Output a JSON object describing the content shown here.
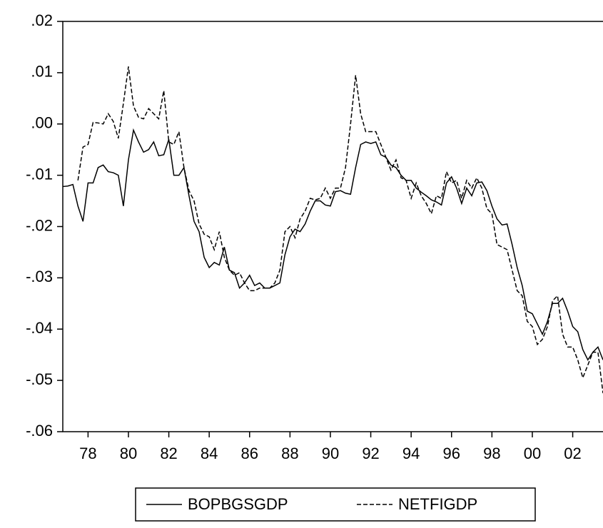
{
  "chart_data": {
    "type": "line",
    "x": [
      1976.75,
      1977,
      1977.25,
      1977.5,
      1977.75,
      1978,
      1978.25,
      1978.5,
      1978.75,
      1979,
      1979.25,
      1979.5,
      1979.75,
      1980,
      1980.25,
      1980.5,
      1980.75,
      1981,
      1981.25,
      1981.5,
      1981.75,
      1982,
      1982.25,
      1982.5,
      1982.75,
      1983,
      1983.25,
      1983.5,
      1983.75,
      1984,
      1984.25,
      1984.5,
      1984.75,
      1985,
      1985.25,
      1985.5,
      1985.75,
      1986,
      1986.25,
      1986.5,
      1986.75,
      1987,
      1987.25,
      1987.5,
      1987.75,
      1988,
      1988.25,
      1988.5,
      1988.75,
      1989,
      1989.25,
      1989.5,
      1989.75,
      1990,
      1990.25,
      1990.5,
      1990.75,
      1991,
      1991.25,
      1991.5,
      1991.75,
      1992,
      1992.25,
      1992.5,
      1992.75,
      1993,
      1993.25,
      1993.5,
      1993.75,
      1994,
      1994.25,
      1994.5,
      1994.75,
      1995,
      1995.25,
      1995.5,
      1995.75,
      1996,
      1996.25,
      1996.5,
      1996.75,
      1997,
      1997.25,
      1997.5,
      1997.75,
      1998,
      1998.25,
      1998.5,
      1998.75,
      1999,
      1999.25,
      1999.5,
      1999.75,
      2000,
      2000.25,
      2000.5,
      2000.75,
      2001,
      2001.25,
      2001.5,
      2001.75,
      2002,
      2002.25,
      2002.5,
      2002.75,
      2003,
      2003.25,
      2003.5
    ],
    "series": [
      {
        "name": "BOPBGSGDP",
        "color": "#000000",
        "dash": "solid",
        "values": [
          -0.0122,
          -0.0121,
          -0.0118,
          -0.016,
          -0.019,
          -0.0115,
          -0.0115,
          -0.0085,
          -0.008,
          -0.0093,
          -0.0095,
          -0.01,
          -0.016,
          -0.007,
          -0.0012,
          -0.0035,
          -0.0055,
          -0.005,
          -0.0035,
          -0.0062,
          -0.006,
          -0.003,
          -0.01,
          -0.01,
          -0.0085,
          -0.014,
          -0.019,
          -0.021,
          -0.026,
          -0.028,
          -0.027,
          -0.0275,
          -0.024,
          -0.0285,
          -0.029,
          -0.032,
          -0.031,
          -0.0295,
          -0.0315,
          -0.031,
          -0.032,
          -0.032,
          -0.0315,
          -0.031,
          -0.0255,
          -0.022,
          -0.0205,
          -0.021,
          -0.0195,
          -0.017,
          -0.015,
          -0.015,
          -0.0158,
          -0.016,
          -0.0132,
          -0.013,
          -0.0135,
          -0.0137,
          -0.0085,
          -0.004,
          -0.0035,
          -0.0038,
          -0.0035,
          -0.006,
          -0.0065,
          -0.008,
          -0.0085,
          -0.01,
          -0.011,
          -0.011,
          -0.0125,
          -0.0133,
          -0.014,
          -0.0148,
          -0.0152,
          -0.0158,
          -0.0115,
          -0.0103,
          -0.0125,
          -0.0155,
          -0.0125,
          -0.014,
          -0.0115,
          -0.0113,
          -0.013,
          -0.016,
          -0.0185,
          -0.0197,
          -0.0195,
          -0.0235,
          -0.028,
          -0.0315,
          -0.0365,
          -0.037,
          -0.039,
          -0.041,
          -0.0385,
          -0.035,
          -0.035,
          -0.034,
          -0.0365,
          -0.0395,
          -0.0405,
          -0.044,
          -0.046,
          -0.0445,
          -0.0435,
          -0.046
        ]
      },
      {
        "name": "NETFIGDP",
        "color": "#000000",
        "dash": "dashed",
        "values": [
          null,
          null,
          null,
          -0.011,
          -0.0045,
          -0.004,
          0.0003,
          0.0002,
          0.0,
          0.002,
          0.0005,
          -0.0028,
          0.004,
          0.0112,
          0.0035,
          0.0013,
          0.001,
          0.003,
          0.002,
          0.001,
          0.0065,
          -0.0035,
          -0.004,
          -0.0015,
          -0.0085,
          -0.013,
          -0.015,
          -0.0195,
          -0.0215,
          -0.022,
          -0.0245,
          -0.021,
          -0.026,
          -0.0285,
          -0.0295,
          -0.029,
          -0.031,
          -0.0325,
          -0.0325,
          -0.032,
          -0.032,
          -0.032,
          -0.031,
          -0.0285,
          -0.021,
          -0.02,
          -0.0222,
          -0.0185,
          -0.017,
          -0.0145,
          -0.0148,
          -0.0145,
          -0.0125,
          -0.0145,
          -0.0125,
          -0.0125,
          -0.0085,
          0.0,
          0.0095,
          0.002,
          -0.0015,
          -0.0015,
          -0.0015,
          -0.004,
          -0.0065,
          -0.009,
          -0.007,
          -0.0105,
          -0.011,
          -0.0145,
          -0.0115,
          -0.014,
          -0.0155,
          -0.0175,
          -0.014,
          -0.0145,
          -0.0093,
          -0.0115,
          -0.011,
          -0.0145,
          -0.011,
          -0.0125,
          -0.0105,
          -0.0125,
          -0.0165,
          -0.0175,
          -0.0235,
          -0.024,
          -0.0245,
          -0.0285,
          -0.0325,
          -0.0335,
          -0.0385,
          -0.0395,
          -0.043,
          -0.042,
          -0.0395,
          -0.0345,
          -0.0335,
          -0.041,
          -0.0435,
          -0.0435,
          -0.046,
          -0.0495,
          -0.047,
          -0.0445,
          -0.0445,
          -0.0525
        ]
      }
    ],
    "xlim": [
      1976.75,
      2003.5
    ],
    "xticks": [
      {
        "value": 1978,
        "label": "78"
      },
      {
        "value": 1980,
        "label": "80"
      },
      {
        "value": 1982,
        "label": "82"
      },
      {
        "value": 1984,
        "label": "84"
      },
      {
        "value": 1986,
        "label": "86"
      },
      {
        "value": 1988,
        "label": "88"
      },
      {
        "value": 1990,
        "label": "90"
      },
      {
        "value": 1992,
        "label": "92"
      },
      {
        "value": 1994,
        "label": "94"
      },
      {
        "value": 1996,
        "label": "96"
      },
      {
        "value": 1998,
        "label": "98"
      },
      {
        "value": 2000,
        "label": "00"
      },
      {
        "value": 2002,
        "label": "02"
      }
    ],
    "ylim": [
      -0.06,
      0.02
    ],
    "yticks": [
      {
        "value": 0.02,
        "label": ".02"
      },
      {
        "value": 0.01,
        "label": ".01"
      },
      {
        "value": 0,
        "label": ".00"
      },
      {
        "value": -0.01,
        "label": "-.01"
      },
      {
        "value": -0.02,
        "label": "-.02"
      },
      {
        "value": -0.03,
        "label": "-.03"
      },
      {
        "value": -0.04,
        "label": "-.04"
      },
      {
        "value": -0.05,
        "label": "-.05"
      },
      {
        "value": -0.06,
        "label": "-.06"
      }
    ],
    "grid": false,
    "legend": "bottom"
  }
}
